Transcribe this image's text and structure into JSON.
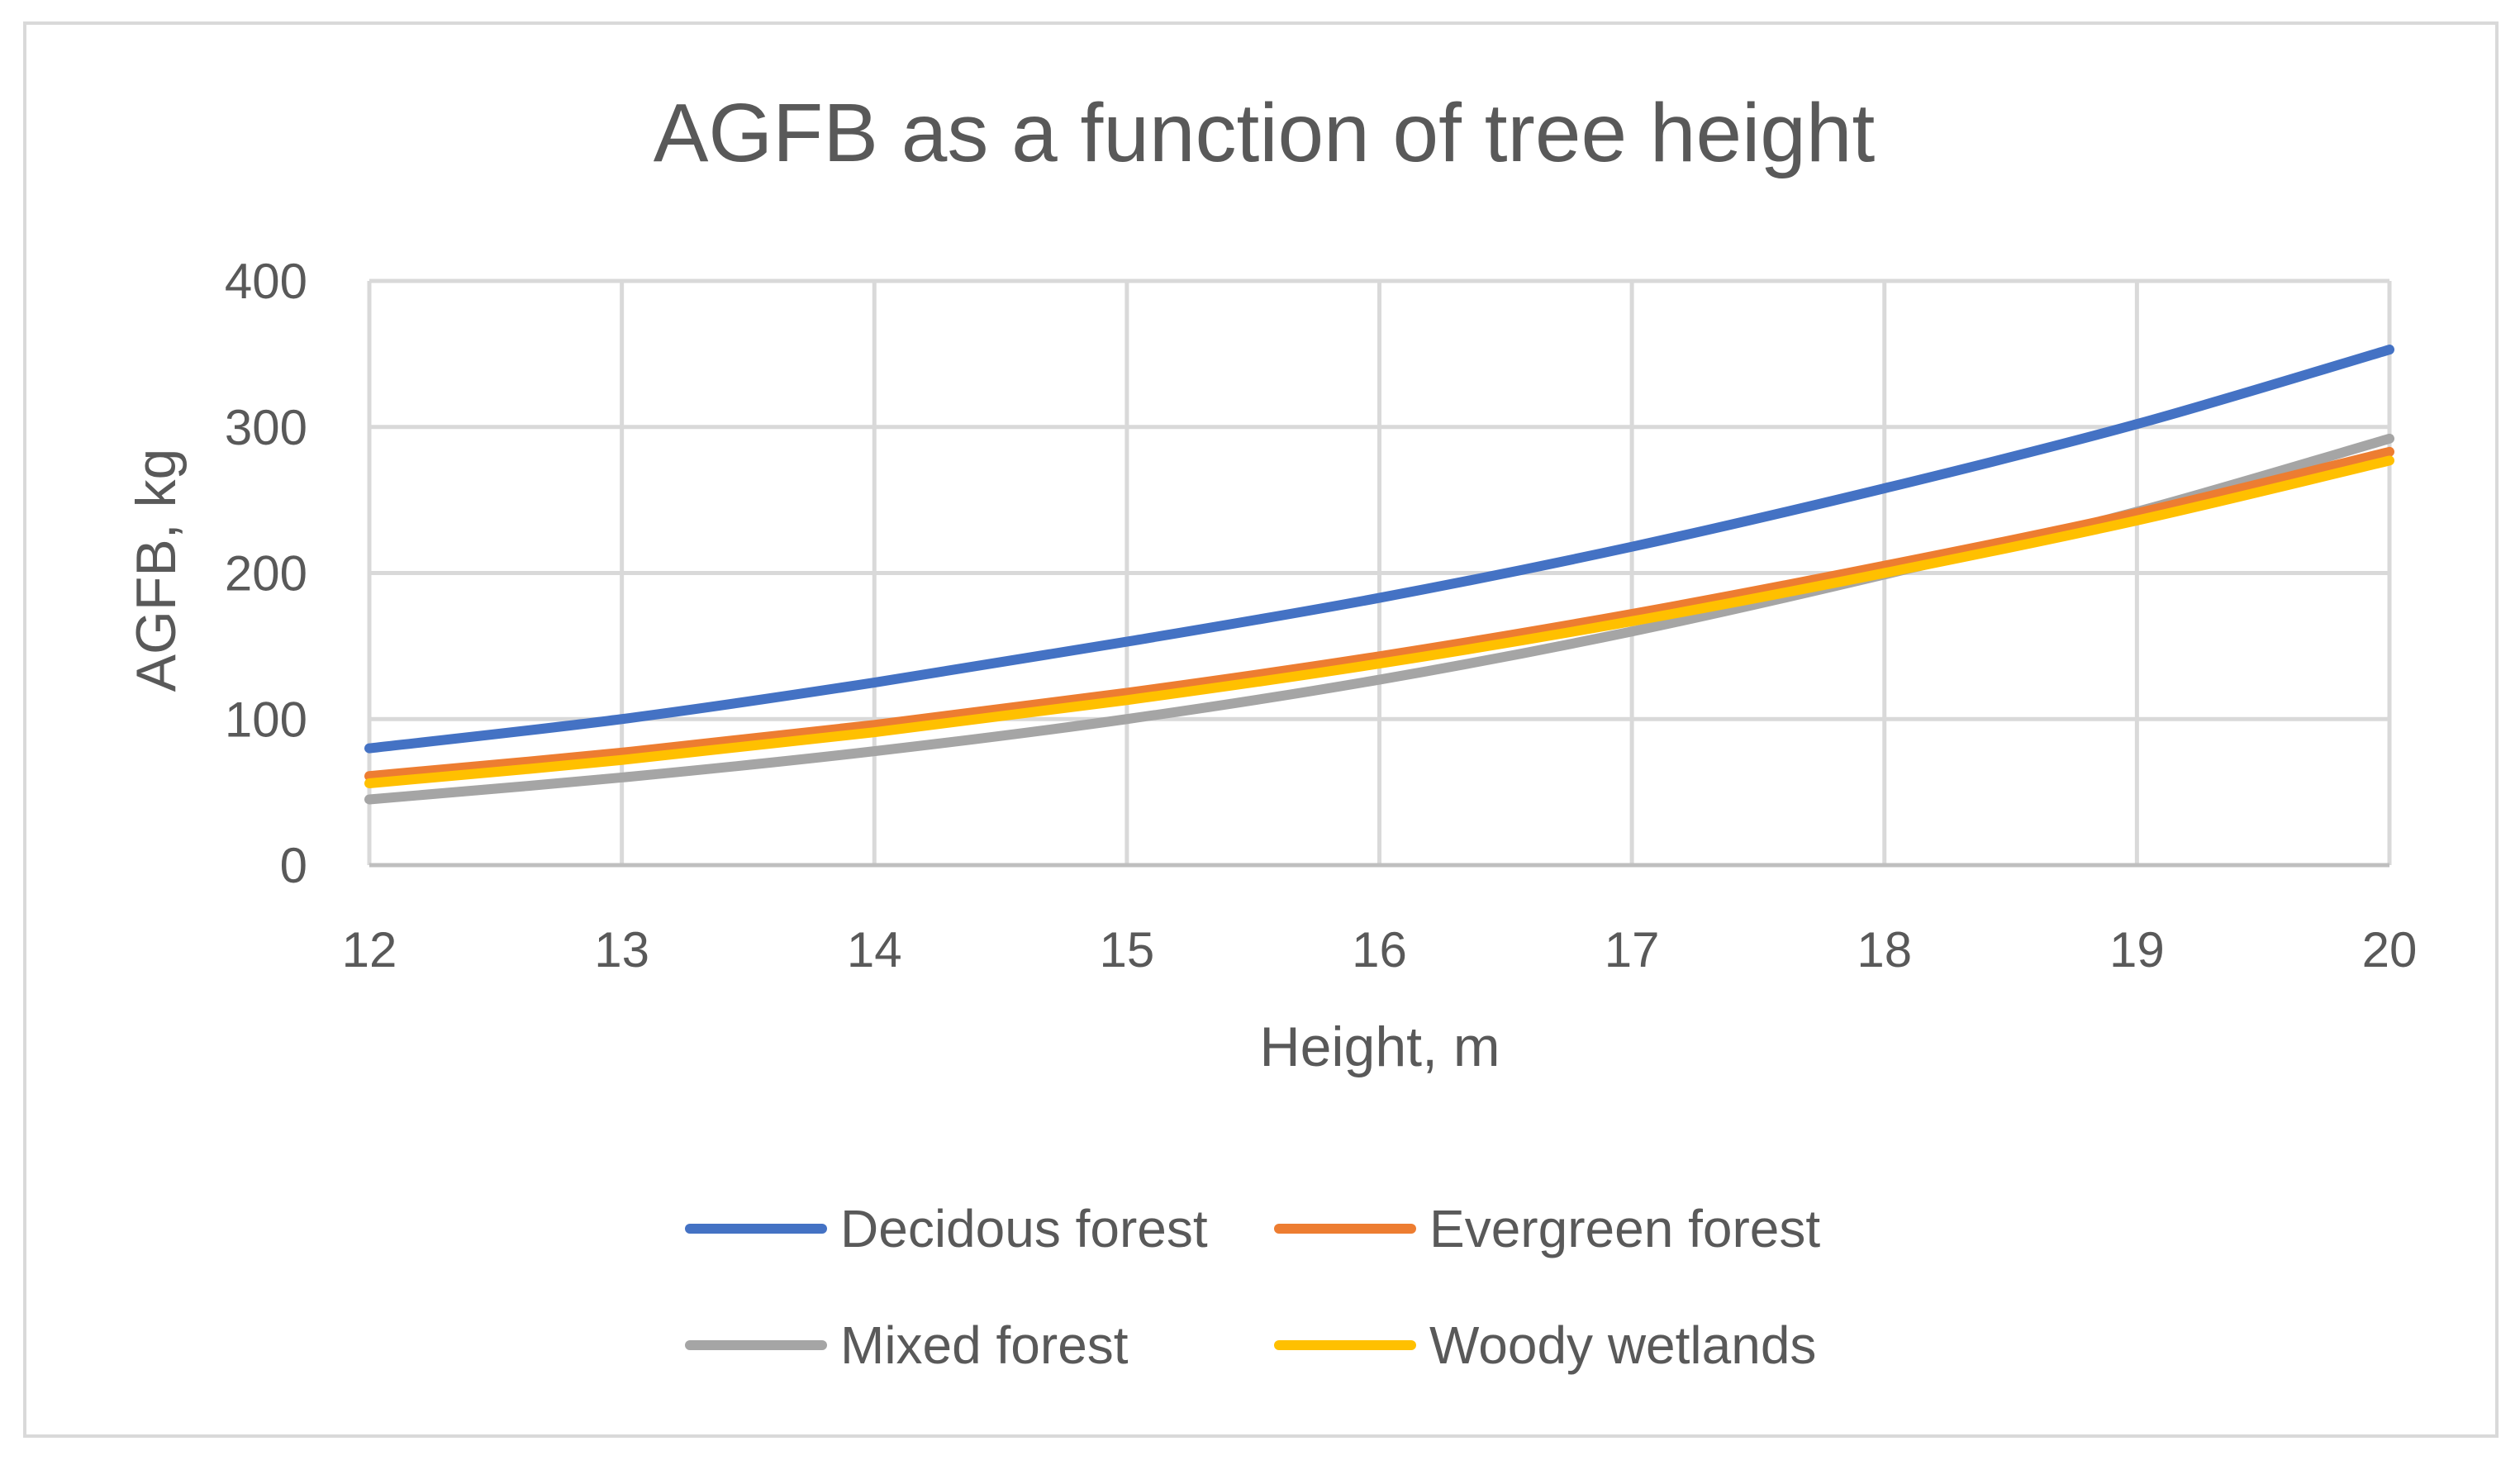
{
  "chart_data": {
    "type": "line",
    "title": "AGFB as a function of tree height",
    "xlabel": "Height, m",
    "ylabel": "AGFB, kg",
    "xlim": [
      12,
      20
    ],
    "ylim": [
      0,
      400
    ],
    "x_ticks": [
      12,
      13,
      14,
      15,
      16,
      17,
      18,
      19,
      20
    ],
    "y_ticks": [
      0,
      100,
      200,
      300,
      400
    ],
    "grid": true,
    "legend_position": "bottom",
    "x": [
      12,
      13,
      14,
      15,
      16,
      17,
      18,
      19,
      20
    ],
    "series": [
      {
        "name": "Decidous forest",
        "color": "#4472C4",
        "values": [
          80,
          100,
          125,
          153,
          183,
          218,
          258,
          302,
          353
        ]
      },
      {
        "name": "Evergreen forest",
        "color": "#ED7D31",
        "values": [
          61,
          77,
          96,
          118,
          143,
          172,
          205,
          241,
          283
        ]
      },
      {
        "name": "Mixed forest",
        "color": "#A5A5A5",
        "values": [
          45,
          60,
          78,
          100,
          127,
          160,
          199,
          242,
          292
        ]
      },
      {
        "name": "Woody wetlands",
        "color": "#FFC000",
        "values": [
          56,
          72,
          91,
          113,
          138,
          167,
          200,
          236,
          277
        ]
      }
    ]
  }
}
